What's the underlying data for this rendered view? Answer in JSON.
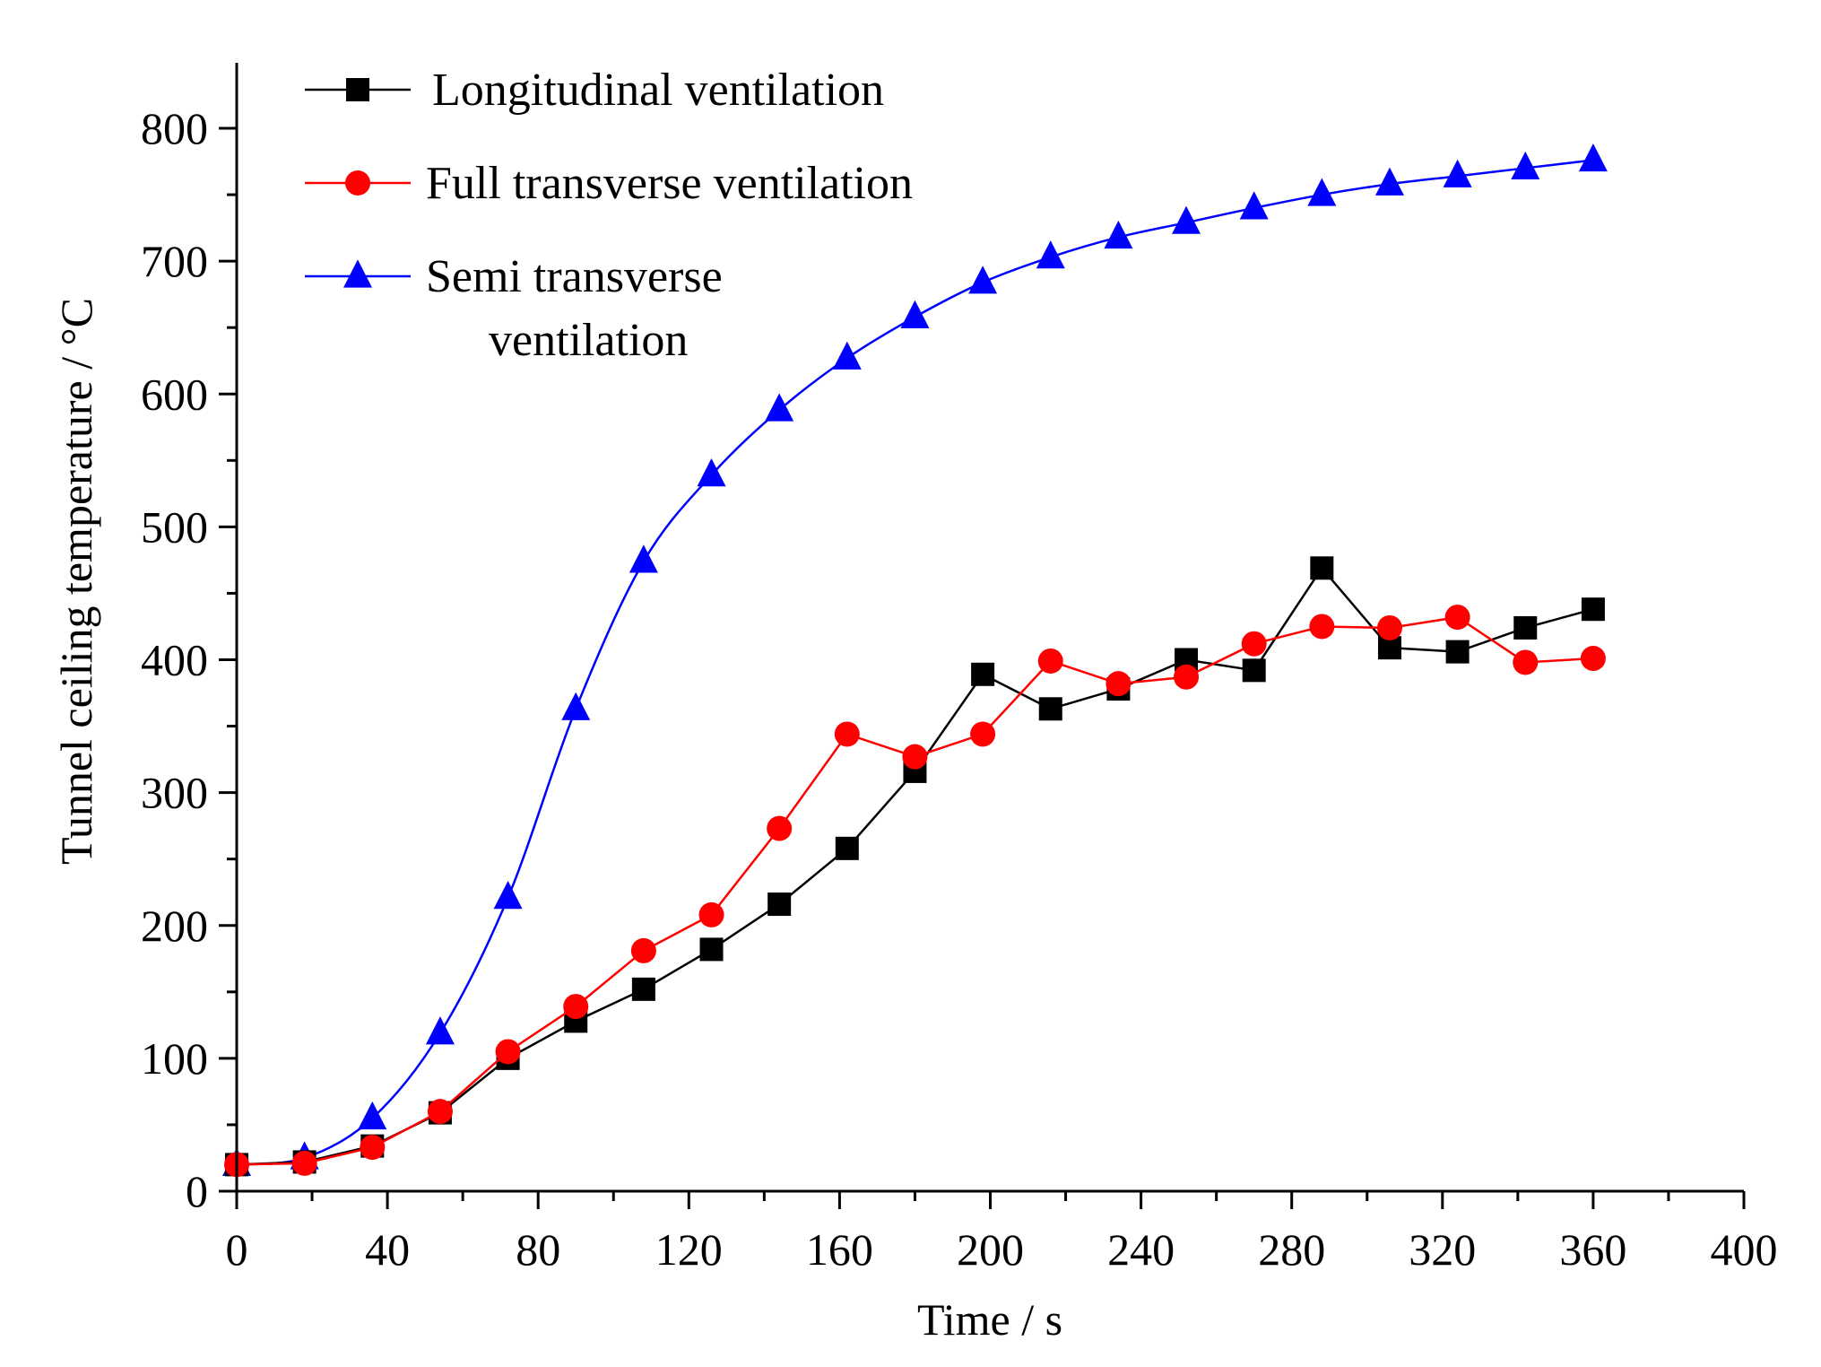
{
  "chart_data": {
    "type": "line",
    "xlabel": "Time / s",
    "ylabel": "Tunnel ceiling temperature / °C",
    "xlim": [
      0,
      400
    ],
    "ylim": [
      0,
      850
    ],
    "xticks": [
      0,
      40,
      80,
      120,
      160,
      200,
      240,
      280,
      320,
      360,
      400
    ],
    "yticks": [
      0,
      100,
      200,
      300,
      400,
      500,
      600,
      700,
      800
    ],
    "grid": false,
    "legend_position": "top-left",
    "x": [
      0,
      18,
      36,
      54,
      72,
      90,
      108,
      126,
      144,
      162,
      180,
      198,
      216,
      234,
      252,
      270,
      288,
      306,
      324,
      342,
      360
    ],
    "series": [
      {
        "name": "Longitudinal ventilation",
        "color": "#000000",
        "marker": "square",
        "smooth": false,
        "values": [
          20,
          22,
          34,
          59,
          100,
          128,
          152,
          182,
          216,
          258,
          316,
          389,
          363,
          378,
          400,
          392,
          469,
          409,
          406,
          424,
          438
        ]
      },
      {
        "name": "Full transverse ventilation",
        "color": "#ff0000",
        "marker": "circle",
        "smooth": false,
        "values": [
          20,
          21,
          33,
          60,
          105,
          139,
          181,
          208,
          273,
          344,
          327,
          344,
          399,
          382,
          387,
          412,
          425,
          424,
          432,
          398,
          401
        ]
      },
      {
        "name": "Semi transverse ventilation",
        "legend_lines": [
          "Semi transverse",
          "ventilation"
        ],
        "color": "#0000ff",
        "marker": "triangle",
        "smooth": true,
        "values": [
          20,
          25,
          55,
          119,
          221,
          363,
          474,
          539,
          588,
          627,
          658,
          684,
          703,
          718,
          729,
          740,
          750,
          758,
          764,
          770,
          776
        ]
      }
    ]
  }
}
